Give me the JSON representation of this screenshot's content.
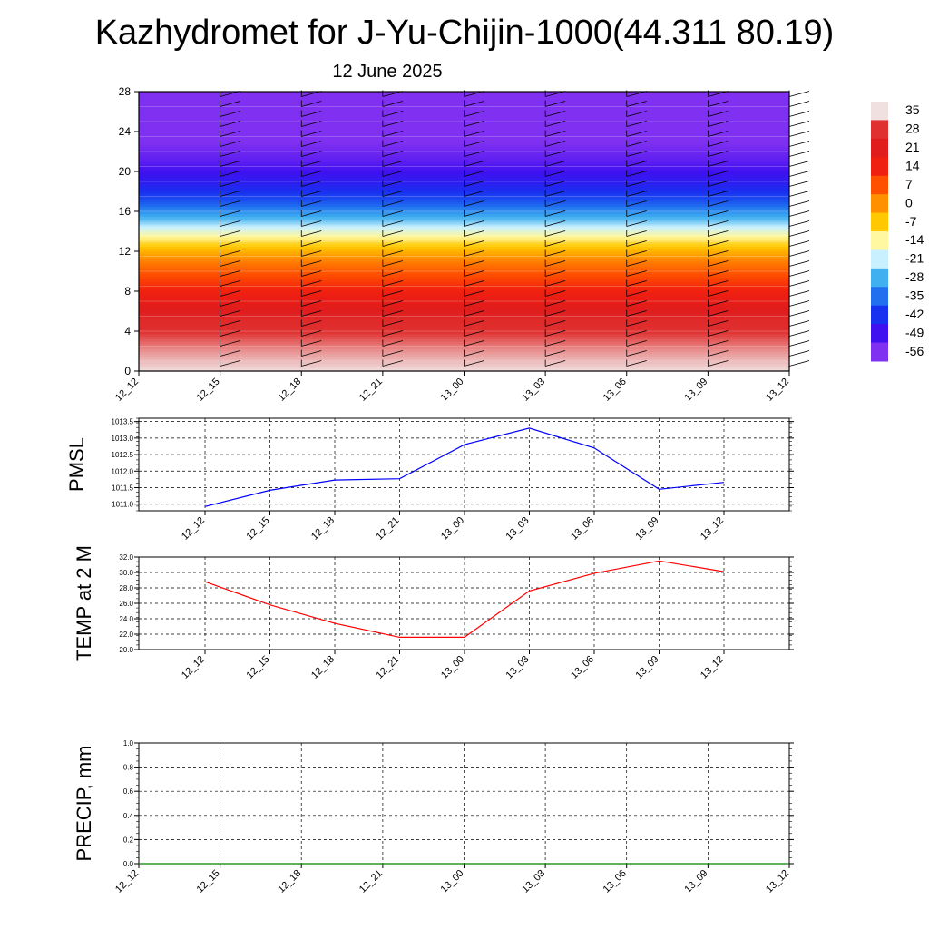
{
  "title": "Kazhydromet for J-Yu-Chijin-1000(44.311 80.19)",
  "date": "12 June 2025",
  "chart_data": [
    {
      "type": "heatmap",
      "x": [
        "12_12",
        "12_15",
        "12_18",
        "12_21",
        "13_00",
        "13_03",
        "13_06",
        "13_09",
        "13_12"
      ],
      "y_ticks": [
        0,
        4,
        8,
        12,
        16,
        20,
        24,
        28
      ],
      "ylim": [
        0,
        28
      ],
      "grid": false,
      "colorbar": {
        "placement": "right",
        "labels": [
          "35",
          "28",
          "21",
          "14",
          "7",
          "0",
          "-7",
          "-14",
          "-21",
          "-28",
          "-35",
          "-42",
          "-49",
          "-56"
        ],
        "colors": [
          "#f0e0e0",
          "#e03030",
          "#e01c1c",
          "#f02010",
          "#ff5000",
          "#ff9000",
          "#ffc800",
          "#fff8a0",
          "#c8f0ff",
          "#40b0f0",
          "#2070f0",
          "#1830f0",
          "#4010f0",
          "#8030f0"
        ]
      },
      "temperature_profile": [
        {
          "height": 0,
          "value": 35
        },
        {
          "height": 2,
          "value": 32
        },
        {
          "height": 5,
          "value": 26
        },
        {
          "height": 8,
          "value": 14
        },
        {
          "height": 11,
          "value": 2
        },
        {
          "height": 13,
          "value": -10
        },
        {
          "height": 15,
          "value": -25
        },
        {
          "height": 17,
          "value": -38
        },
        {
          "height": 19,
          "value": -46
        },
        {
          "height": 21,
          "value": -52
        },
        {
          "height": 23,
          "value": -56
        },
        {
          "height": 28,
          "value": -58
        }
      ]
    },
    {
      "type": "line",
      "ylabel": "PMSL",
      "x": [
        "12_12",
        "12_15",
        "12_18",
        "12_21",
        "13_00",
        "13_03",
        "13_06",
        "13_09",
        "13_12"
      ],
      "y_ticks": [
        "1011.0",
        "1011.5",
        "1012.0",
        "1012.5",
        "1013.0",
        "1013.5"
      ],
      "ylim": [
        1010.8,
        1013.6
      ],
      "grid": true,
      "series": [
        {
          "color": "#0000ff",
          "values": [
            1010.93,
            1011.42,
            1011.73,
            1011.77,
            1012.8,
            1013.3,
            1012.7,
            1011.45,
            1011.66
          ]
        }
      ]
    },
    {
      "type": "line",
      "ylabel": "TEMP at 2 M",
      "x": [
        "12_12",
        "12_15",
        "12_18",
        "12_21",
        "13_00",
        "13_03",
        "13_06",
        "13_09",
        "13_12"
      ],
      "y_ticks": [
        "20.0",
        "22.0",
        "24.0",
        "26.0",
        "28.0",
        "30.0",
        "32.0"
      ],
      "ylim": [
        20,
        32
      ],
      "grid": true,
      "series": [
        {
          "color": "#ff0000",
          "values": [
            28.8,
            25.8,
            23.4,
            21.6,
            21.6,
            27.6,
            29.9,
            31.5,
            30.1
          ]
        }
      ]
    },
    {
      "type": "line",
      "ylabel": "PRECIP, mm",
      "x": [
        "12_12",
        "12_15",
        "12_18",
        "12_21",
        "13_00",
        "13_03",
        "13_06",
        "13_09",
        "13_12"
      ],
      "y_ticks": [
        "0.0",
        "0.2",
        "0.4",
        "0.6",
        "0.8",
        "1.0"
      ],
      "ylim": [
        0,
        1
      ],
      "grid": true,
      "series": [
        {
          "color": "#008000",
          "values": [
            0,
            0,
            0,
            0,
            0,
            0,
            0,
            0,
            0
          ]
        }
      ]
    }
  ]
}
